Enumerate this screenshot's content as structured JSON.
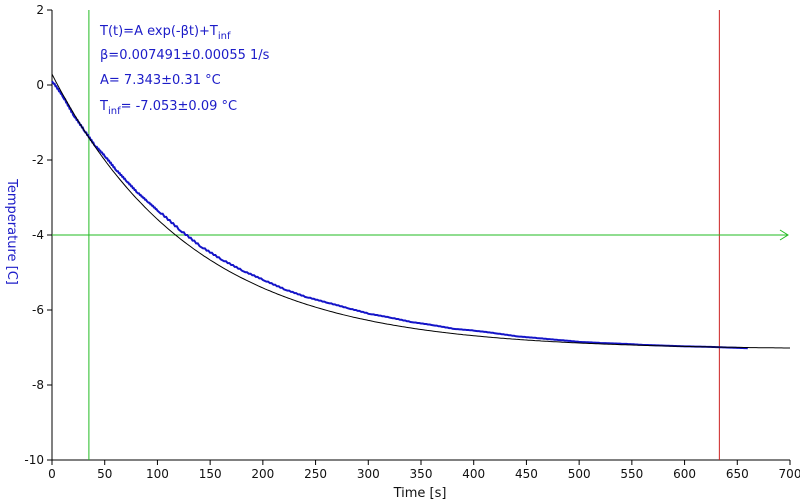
{
  "chart_data": {
    "type": "line",
    "xlabel": "Time [s]",
    "ylabel": "Temperature [C]",
    "xlim": [
      0,
      700
    ],
    "ylim": [
      -10,
      2
    ],
    "x_ticks": [
      0,
      50,
      100,
      150,
      200,
      250,
      300,
      350,
      400,
      450,
      500,
      550,
      600,
      650,
      700
    ],
    "y_ticks": [
      2,
      0,
      -2,
      -4,
      -6,
      -8,
      -10
    ],
    "annotations": {
      "formula_main": "T(t)=A exp(-βt)+T",
      "formula_sub": "inf",
      "beta": "β=0.007491±0.00055 1/s",
      "amplitude": "A= 7.343±0.31 °C",
      "tinf_main": "T",
      "tinf_sub": "inf",
      "tinf_value": "= -7.053±0.09 °C"
    },
    "fit": {
      "A": 7.343,
      "beta": 0.007491,
      "T_inf": -7.053,
      "x_range": [
        0,
        700
      ]
    },
    "series": [
      {
        "x": [
          0,
          10,
          20,
          30,
          40,
          50,
          60,
          70,
          80,
          90,
          100,
          120,
          140,
          160,
          180,
          200,
          220,
          240,
          260,
          280,
          300,
          320,
          340,
          360,
          380,
          400,
          420,
          440,
          460,
          480,
          500,
          520,
          540,
          560,
          580,
          600,
          620,
          640,
          660
        ],
        "y": [
          0.1,
          -0.3,
          -0.8,
          -1.2,
          -1.6,
          -1.9,
          -2.25,
          -2.55,
          -2.85,
          -3.1,
          -3.35,
          -3.85,
          -4.3,
          -4.65,
          -4.95,
          -5.2,
          -5.45,
          -5.65,
          -5.8,
          -5.95,
          -6.1,
          -6.2,
          -6.32,
          -6.4,
          -6.5,
          -6.55,
          -6.62,
          -6.7,
          -6.75,
          -6.8,
          -6.85,
          -6.88,
          -6.9,
          -6.93,
          -6.95,
          -6.97,
          -6.98,
          -7.0,
          -7.02
        ],
        "color": "#1414c8"
      }
    ],
    "reference_lines": {
      "vertical_green_x": 35,
      "vertical_red_x": 633,
      "horizontal_green_y": -4
    },
    "colors": {
      "data": "#1414c8",
      "fit": "#000000",
      "green_line": "#22bb22",
      "red_line": "#cc2222",
      "ylabel": "#1c1cc8",
      "annotations": "#1c1cc8",
      "axis": "#000000"
    }
  }
}
